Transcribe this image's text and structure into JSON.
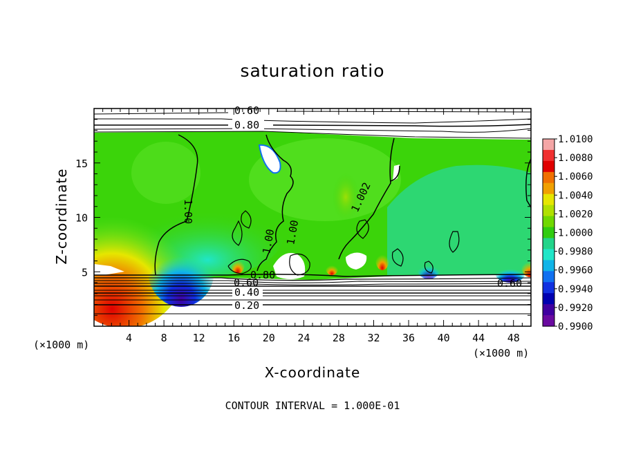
{
  "chart_data": {
    "type": "heatmap",
    "title": "saturation ratio",
    "xlabel": "X-coordinate",
    "ylabel": "Z-coordinate",
    "x_unit": "(×1000 m)",
    "z_unit": "(×1000 m)",
    "xlim": [
      0,
      50
    ],
    "ylim": [
      0,
      20
    ],
    "x_ticks": [
      4,
      8,
      12,
      16,
      20,
      24,
      28,
      32,
      36,
      40,
      44,
      48
    ],
    "y_ticks": [
      5,
      10,
      15
    ],
    "colorbar": {
      "ticks": [
        "1.0100",
        "1.0080",
        "1.0060",
        "1.0040",
        "1.0020",
        "1.0000",
        "0.9980",
        "0.9960",
        "0.9940",
        "0.9920",
        "0.9900"
      ],
      "colors": [
        "#f4a6a6",
        "#f03030",
        "#e00000",
        "#f07000",
        "#f0a000",
        "#e6e600",
        "#b0e000",
        "#70d800",
        "#30cc10",
        "#22d48a",
        "#20e6c8",
        "#10b4e8",
        "#1070f0",
        "#1030e0",
        "#0000b0",
        "#4000a0",
        "#6a0aa0"
      ]
    },
    "contour_labels": [
      "0.60",
      "0.80",
      "1.00",
      "1.002",
      "1.00",
      "1.00",
      "0.80",
      "0.60",
      "0.40",
      "0.20",
      "0.60"
    ],
    "footnote": "CONTOUR INTERVAL = 1.000E-01",
    "colors": {
      "field_green": "#3bd40a",
      "field_light": "#5fe42a",
      "field_cyan": "#22d8c8"
    }
  }
}
